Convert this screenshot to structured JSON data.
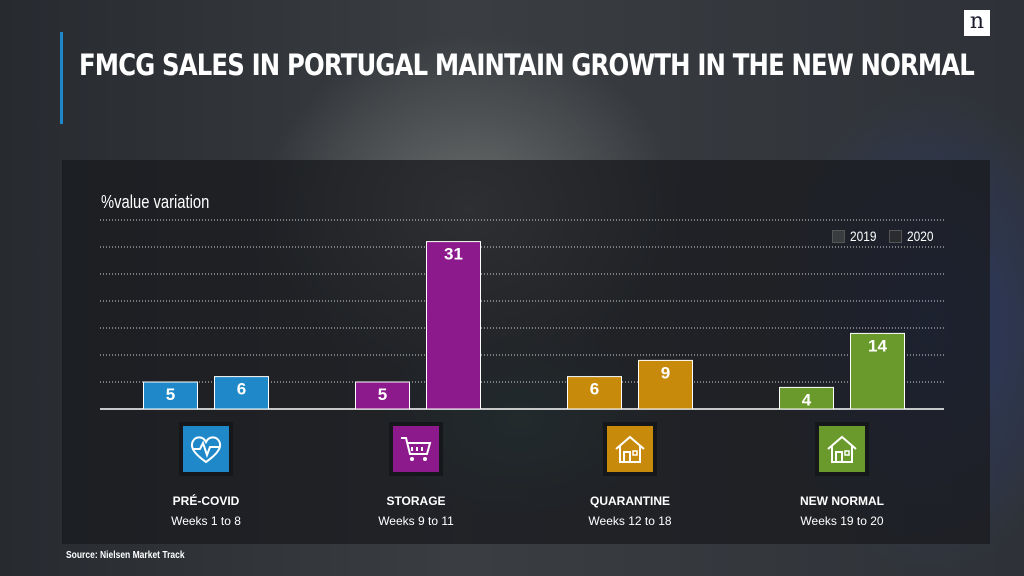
{
  "header": {
    "title": "FMCG SALES IN PORTUGAL MAINTAIN GROWTH IN THE NEW NORMAL",
    "logo_letter": "n"
  },
  "footer": {
    "source": "Source: Nielsen Market Track"
  },
  "colors": {
    "accent_bar": "#1e88c8",
    "pre_covid": "#1e88c8",
    "storage": "#8c1a8c",
    "quarantine": "#c88a0a",
    "new_normal": "#6a9a2c"
  },
  "categories": [
    {
      "name": "PRÉ-COVID",
      "weeks": "Weeks 1 to 8",
      "icon": "heart-pulse-icon",
      "color": "#1e88c8"
    },
    {
      "name": "STORAGE",
      "weeks": "Weeks 9 to 11",
      "icon": "shopping-cart-icon",
      "color": "#8c1a8c"
    },
    {
      "name": "QUARANTINE",
      "weeks": "Weeks 12 to 18",
      "icon": "house-icon",
      "color": "#c88a0a"
    },
    {
      "name": "NEW NORMAL",
      "weeks": "Weeks 19 to 20",
      "icon": "house-icon",
      "color": "#6a9a2c"
    }
  ],
  "chart_data": {
    "type": "bar",
    "ylabel": "%value variation",
    "categories": [
      "PRÉ-COVID",
      "STORAGE",
      "QUARANTINE",
      "NEW NORMAL"
    ],
    "series": [
      {
        "name": "2019",
        "values": [
          5,
          5,
          6,
          4
        ]
      },
      {
        "name": "2020",
        "values": [
          6,
          31,
          9,
          14
        ]
      }
    ],
    "ylim": [
      0,
      35
    ],
    "grid": true,
    "legend": "top-right"
  }
}
